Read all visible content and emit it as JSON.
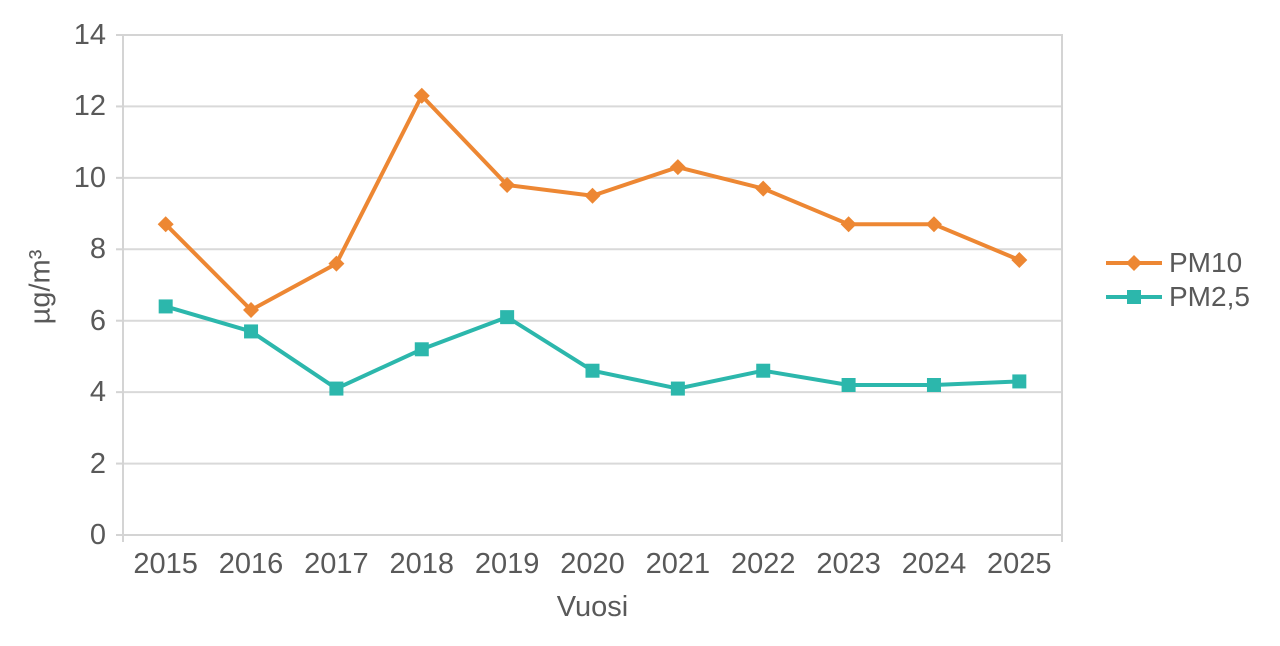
{
  "chart_data": {
    "type": "line",
    "title": "",
    "xlabel": "Vuosi",
    "ylabel": "µg/m³",
    "categories": [
      "2015",
      "2016",
      "2017",
      "2018",
      "2019",
      "2020",
      "2021",
      "2022",
      "2023",
      "2024",
      "2025"
    ],
    "series": [
      {
        "name": "PM10",
        "color": "#ED8733",
        "marker": "diamond",
        "values": [
          8.7,
          6.3,
          7.6,
          12.3,
          9.8,
          9.5,
          10.3,
          9.7,
          8.7,
          8.7,
          7.7
        ]
      },
      {
        "name": "PM2,5",
        "color": "#2CB7AC",
        "marker": "square",
        "values": [
          6.4,
          5.7,
          4.1,
          5.2,
          6.1,
          4.6,
          4.1,
          4.6,
          4.2,
          4.2,
          4.3
        ]
      }
    ],
    "ylim": [
      0,
      14
    ],
    "yticks": [
      0,
      2,
      4,
      6,
      8,
      10,
      12,
      14
    ],
    "grid": "horizontal",
    "legend_position": "right"
  },
  "style": {
    "text_color": "#595959",
    "grid_color": "#D9D9D9",
    "axis_color": "#D4D4D4",
    "background": "#FFFFFF"
  }
}
